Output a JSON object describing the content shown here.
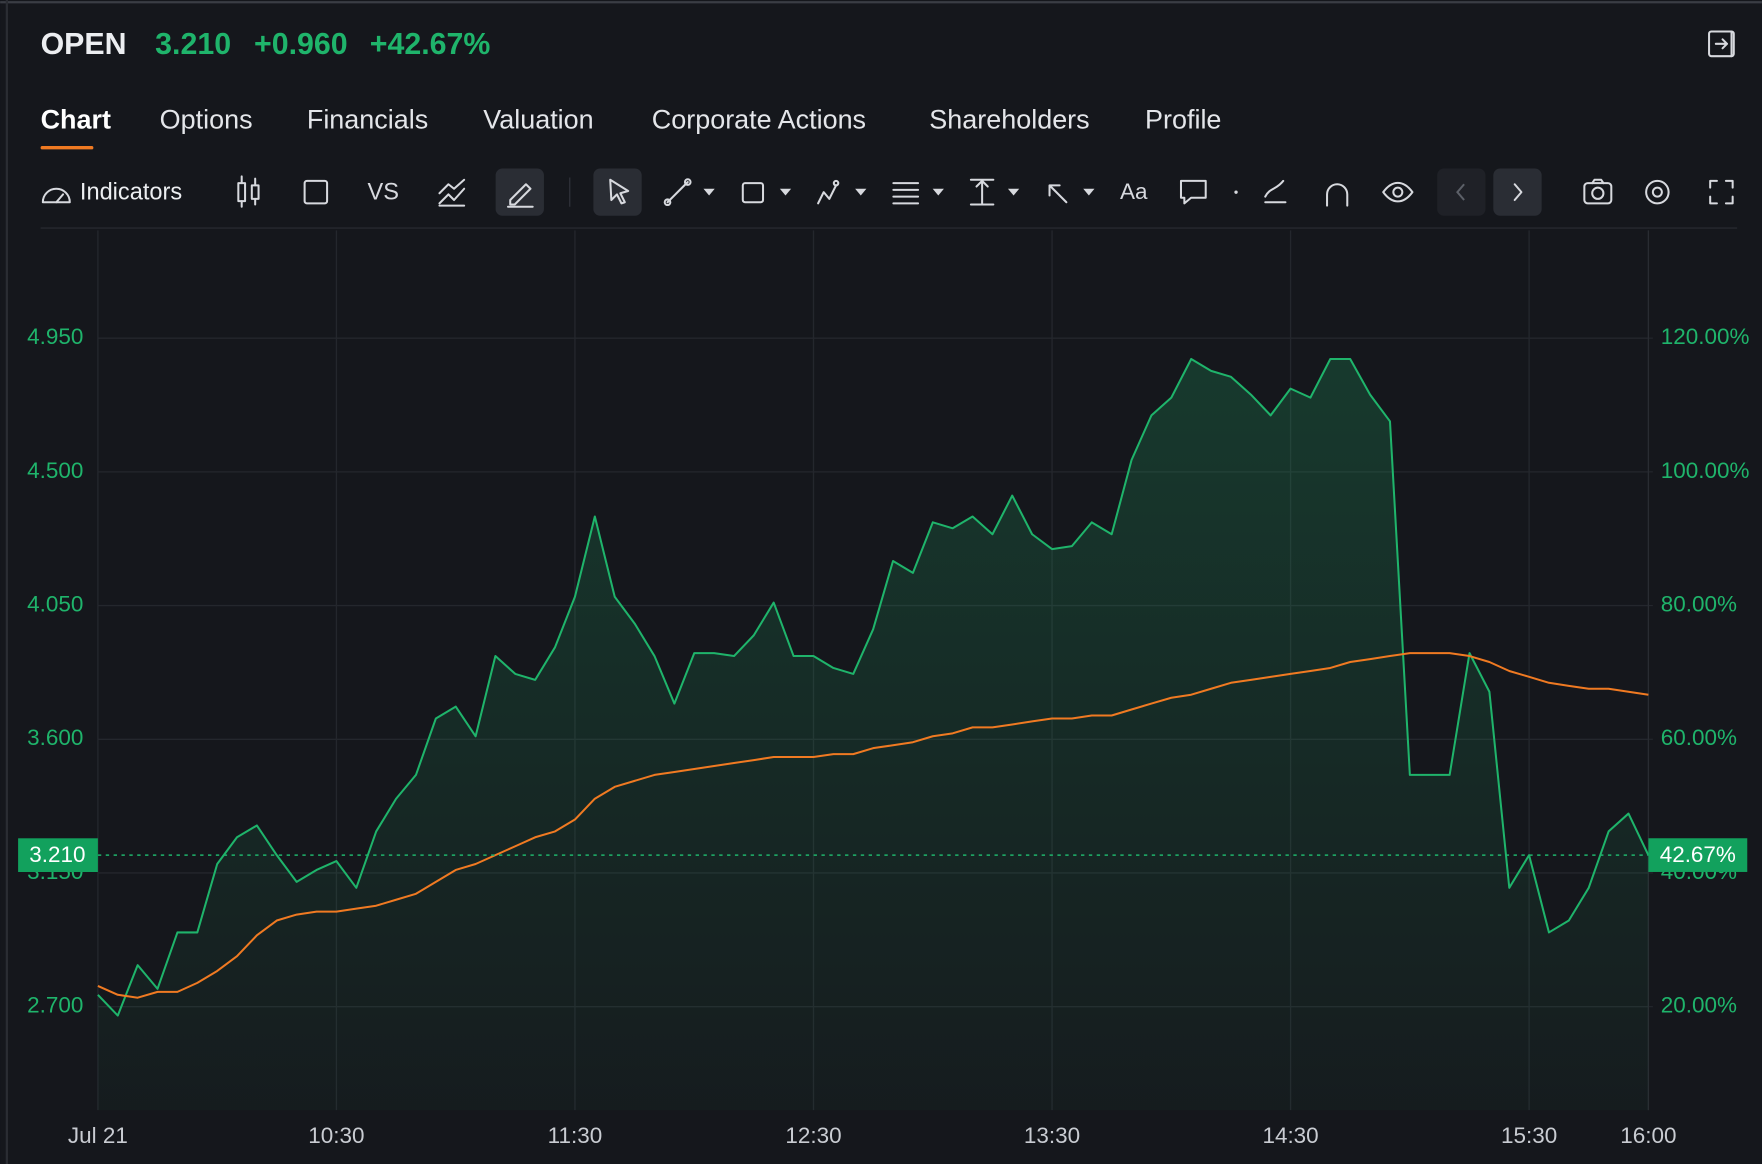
{
  "header": {
    "symbol": "OPEN",
    "price": "3.210",
    "change": "+0.960",
    "change_pct": "+42.67%"
  },
  "tabs": [
    "Chart",
    "Options",
    "Financials",
    "Valuation",
    "Corporate Actions",
    "Shareholders",
    "Profile"
  ],
  "toolbar": {
    "indicators": "Indicators",
    "compare": "VS",
    "text_tool": "Aa"
  },
  "chart_data": {
    "type": "line",
    "x": [
      "09:30",
      "09:35",
      "09:40",
      "09:45",
      "09:50",
      "09:55",
      "10:00",
      "10:05",
      "10:10",
      "10:15",
      "10:20",
      "10:25",
      "10:30",
      "10:35",
      "10:40",
      "10:45",
      "10:50",
      "10:55",
      "11:00",
      "11:05",
      "11:10",
      "11:15",
      "11:20",
      "11:25",
      "11:30",
      "11:35",
      "11:40",
      "11:45",
      "11:50",
      "11:55",
      "12:00",
      "12:05",
      "12:10",
      "12:15",
      "12:20",
      "12:25",
      "12:30",
      "12:35",
      "12:40",
      "12:45",
      "12:50",
      "12:55",
      "13:00",
      "13:05",
      "13:10",
      "13:15",
      "13:20",
      "13:25",
      "13:30",
      "13:35",
      "13:40",
      "13:45",
      "13:50",
      "13:55",
      "14:00",
      "14:05",
      "14:10",
      "14:15",
      "14:20",
      "14:25",
      "14:30",
      "14:35",
      "14:40",
      "14:45",
      "14:50",
      "14:55",
      "15:00",
      "15:05",
      "15:10",
      "15:15",
      "15:20",
      "15:25",
      "15:30",
      "15:35",
      "15:40",
      "15:45",
      "15:50",
      "15:55",
      "16:00"
    ],
    "series": [
      {
        "color": "#1fb46b",
        "values": [
          2.74,
          2.67,
          2.84,
          2.76,
          2.95,
          2.95,
          3.18,
          3.27,
          3.31,
          3.21,
          3.12,
          3.16,
          3.19,
          3.1,
          3.29,
          3.4,
          3.48,
          3.67,
          3.71,
          3.61,
          3.88,
          3.82,
          3.8,
          3.91,
          4.08,
          4.35,
          4.08,
          3.99,
          3.88,
          3.72,
          3.89,
          3.89,
          3.88,
          3.95,
          4.06,
          3.88,
          3.88,
          3.84,
          3.82,
          3.97,
          4.2,
          4.16,
          4.33,
          4.31,
          4.35,
          4.29,
          4.42,
          4.29,
          4.24,
          4.25,
          4.33,
          4.29,
          4.54,
          4.69,
          4.75,
          4.88,
          4.84,
          4.82,
          4.76,
          4.69,
          4.78,
          4.75,
          4.88,
          4.88,
          4.76,
          4.67,
          3.48,
          3.48,
          3.48,
          3.89,
          3.76,
          3.1,
          3.21,
          2.95,
          2.99,
          3.1,
          3.29,
          3.35,
          3.21
        ]
      },
      {
        "color": "#f07a22",
        "values": [
          2.77,
          2.74,
          2.73,
          2.75,
          2.75,
          2.78,
          2.82,
          2.87,
          2.94,
          2.99,
          3.01,
          3.02,
          3.02,
          3.03,
          3.04,
          3.06,
          3.08,
          3.12,
          3.16,
          3.18,
          3.21,
          3.24,
          3.27,
          3.29,
          3.33,
          3.4,
          3.44,
          3.46,
          3.48,
          3.49,
          3.5,
          3.51,
          3.52,
          3.53,
          3.54,
          3.54,
          3.54,
          3.55,
          3.55,
          3.57,
          3.58,
          3.59,
          3.61,
          3.62,
          3.64,
          3.64,
          3.65,
          3.66,
          3.67,
          3.67,
          3.68,
          3.68,
          3.7,
          3.72,
          3.74,
          3.75,
          3.77,
          3.79,
          3.8,
          3.81,
          3.82,
          3.83,
          3.84,
          3.86,
          3.87,
          3.88,
          3.89,
          3.89,
          3.89,
          3.88,
          3.86,
          3.83,
          3.81,
          3.79,
          3.78,
          3.77,
          3.77,
          3.76,
          3.75
        ]
      }
    ],
    "xlim": [
      "09:30",
      "16:00"
    ],
    "xticks": [
      {
        "value": "09:30",
        "label": "Jul 21"
      },
      "10:30",
      "11:30",
      "12:30",
      "13:30",
      "14:30",
      "15:30",
      "16:00"
    ],
    "ylim": [
      2.352,
      5.313
    ],
    "yticks": [
      {
        "value": 2.7,
        "label": "2.700"
      },
      {
        "value": 3.15,
        "label": "3.150"
      },
      {
        "value": 3.6,
        "label": "3.600"
      },
      {
        "value": 4.05,
        "label": "4.050"
      },
      {
        "value": 4.5,
        "label": "4.500"
      },
      {
        "value": 4.95,
        "label": "4.950"
      }
    ],
    "y2lim": [
      4.53,
      136.13
    ],
    "y2ticks": [
      {
        "value": 20,
        "label": "20.00%"
      },
      {
        "value": 40,
        "label": "40.00%"
      },
      {
        "value": 60,
        "label": "60.00%"
      },
      {
        "value": 80,
        "label": "80.00%"
      },
      {
        "value": 100,
        "label": "100.00%"
      },
      {
        "value": 120,
        "label": "120.00%"
      }
    ],
    "last_price": {
      "value": 3.21,
      "label": "3.210"
    },
    "last_change_pct": {
      "value": 42.67,
      "label": "42.67%"
    },
    "grid": true
  }
}
